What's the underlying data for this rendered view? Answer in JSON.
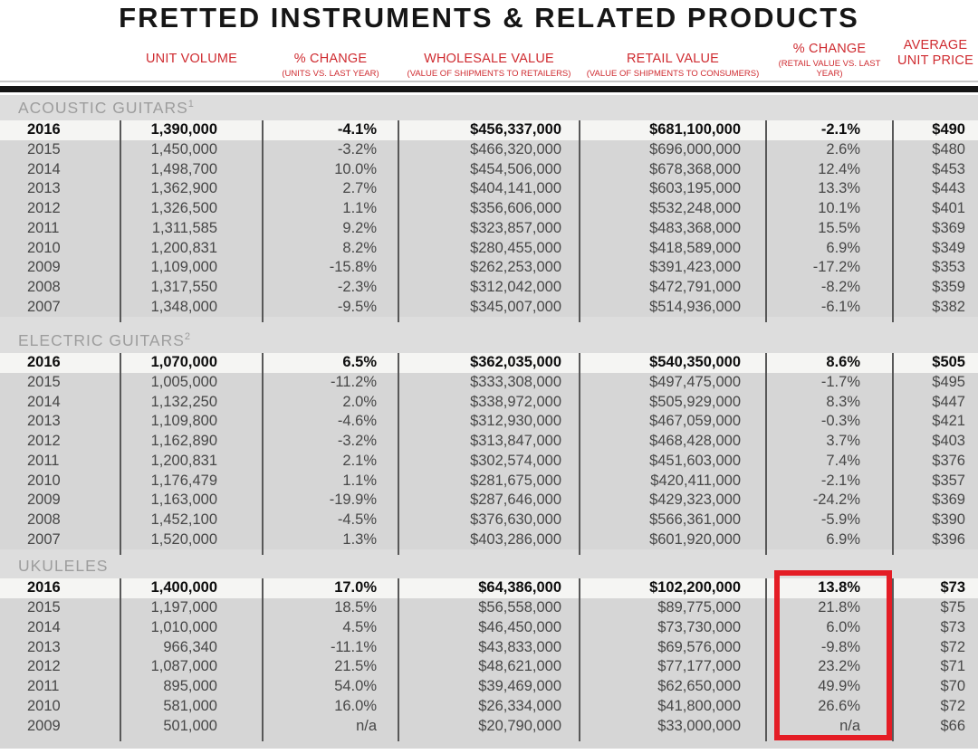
{
  "title": "FRETTED INSTRUMENTS & RELATED PRODUCTS",
  "header": {
    "columns": [
      {
        "label": "UNIT VOLUME",
        "sub": ""
      },
      {
        "label": "% CHANGE",
        "sub": "(UNITS VS. LAST YEAR)"
      },
      {
        "label": "WHOLESALE VALUE",
        "sub": "(VALUE OF SHIPMENTS TO RETAILERS)"
      },
      {
        "label": "RETAIL VALUE",
        "sub": "(VALUE OF SHIPMENTS TO CONSUMERS)"
      },
      {
        "label": "% CHANGE",
        "sub": "(RETAIL VALUE VS. LAST YEAR)"
      },
      {
        "label": "AVERAGE UNIT PRICE",
        "sub": ""
      }
    ]
  },
  "chart_data": {
    "type": "table",
    "title": "FRETTED INSTRUMENTS & RELATED PRODUCTS",
    "columns": [
      "",
      "UNIT VOLUME",
      "% CHANGE (UNITS VS. LAST YEAR)",
      "WHOLESALE VALUE (VALUE OF SHIPMENTS TO RETAILERS)",
      "RETAIL VALUE (VALUE OF SHIPMENTS TO CONSUMERS)",
      "% CHANGE (RETAIL VALUE VS. LAST YEAR)",
      "AVERAGE UNIT PRICE"
    ],
    "sections": [
      {
        "name": "ACOUSTIC GUITARS",
        "footnote": "1",
        "rows": [
          [
            "2016",
            "1,390,000",
            "-4.1%",
            "$456,337,000",
            "$681,100,000",
            "-2.1%",
            "$490"
          ],
          [
            "2015",
            "1,450,000",
            "-3.2%",
            "$466,320,000",
            "$696,000,000",
            "2.6%",
            "$480"
          ],
          [
            "2014",
            "1,498,700",
            "10.0%",
            "$454,506,000",
            "$678,368,000",
            "12.4%",
            "$453"
          ],
          [
            "2013",
            "1,362,900",
            "2.7%",
            "$404,141,000",
            "$603,195,000",
            "13.3%",
            "$443"
          ],
          [
            "2012",
            "1,326,500",
            "1.1%",
            "$356,606,000",
            "$532,248,000",
            "10.1%",
            "$401"
          ],
          [
            "2011",
            "1,311,585",
            "9.2%",
            "$323,857,000",
            "$483,368,000",
            "15.5%",
            "$369"
          ],
          [
            "2010",
            "1,200,831",
            "8.2%",
            "$280,455,000",
            "$418,589,000",
            "6.9%",
            "$349"
          ],
          [
            "2009",
            "1,109,000",
            "-15.8%",
            "$262,253,000",
            "$391,423,000",
            "-17.2%",
            "$353"
          ],
          [
            "2008",
            "1,317,550",
            "-2.3%",
            "$312,042,000",
            "$472,791,000",
            "-8.2%",
            "$359"
          ],
          [
            "2007",
            "1,348,000",
            "-9.5%",
            "$345,007,000",
            "$514,936,000",
            "-6.1%",
            "$382"
          ]
        ]
      },
      {
        "name": "ELECTRIC GUITARS",
        "footnote": "2",
        "rows": [
          [
            "2016",
            "1,070,000",
            "6.5%",
            "$362,035,000",
            "$540,350,000",
            "8.6%",
            "$505"
          ],
          [
            "2015",
            "1,005,000",
            "-11.2%",
            "$333,308,000",
            "$497,475,000",
            "-1.7%",
            "$495"
          ],
          [
            "2014",
            "1,132,250",
            "2.0%",
            "$338,972,000",
            "$505,929,000",
            "8.3%",
            "$447"
          ],
          [
            "2013",
            "1,109,800",
            "-4.6%",
            "$312,930,000",
            "$467,059,000",
            "-0.3%",
            "$421"
          ],
          [
            "2012",
            "1,162,890",
            "-3.2%",
            "$313,847,000",
            "$468,428,000",
            "3.7%",
            "$403"
          ],
          [
            "2011",
            "1,200,831",
            "2.1%",
            "$302,574,000",
            "$451,603,000",
            "7.4%",
            "$376"
          ],
          [
            "2010",
            "1,176,479",
            "1.1%",
            "$281,675,000",
            "$420,411,000",
            "-2.1%",
            "$357"
          ],
          [
            "2009",
            "1,163,000",
            "-19.9%",
            "$287,646,000",
            "$429,323,000",
            "-24.2%",
            "$369"
          ],
          [
            "2008",
            "1,452,100",
            "-4.5%",
            "$376,630,000",
            "$566,361,000",
            "-5.9%",
            "$390"
          ],
          [
            "2007",
            "1,520,000",
            "1.3%",
            "$403,286,000",
            "$601,920,000",
            "6.9%",
            "$396"
          ]
        ]
      },
      {
        "name": "UKULELES",
        "footnote": "",
        "rows": [
          [
            "2016",
            "1,400,000",
            "17.0%",
            "$64,386,000",
            "$102,200,000",
            "13.8%",
            "$73"
          ],
          [
            "2015",
            "1,197,000",
            "18.5%",
            "$56,558,000",
            "$89,775,000",
            "21.8%",
            "$75"
          ],
          [
            "2014",
            "1,010,000",
            "4.5%",
            "$46,450,000",
            "$73,730,000",
            "6.0%",
            "$73"
          ],
          [
            "2013",
            "966,340",
            "-11.1%",
            "$43,833,000",
            "$69,576,000",
            "-9.8%",
            "$72"
          ],
          [
            "2012",
            "1,087,000",
            "21.5%",
            "$48,621,000",
            "$77,177,000",
            "23.2%",
            "$71"
          ],
          [
            "2011",
            "895,000",
            "54.0%",
            "$39,469,000",
            "$62,650,000",
            "49.9%",
            "$70"
          ],
          [
            "2010",
            "581,000",
            "16.0%",
            "$26,334,000",
            "$41,800,000",
            "26.6%",
            "$72"
          ],
          [
            "2009",
            "501,000",
            "n/a",
            "$20,790,000",
            "$33,000,000",
            "n/a",
            "$66"
          ]
        ]
      }
    ]
  },
  "highlight_box": {
    "section": "UKULELES",
    "column": "% CHANGE (RETAIL VALUE VS. LAST YEAR)",
    "color": "#e41d25"
  },
  "colors": {
    "header_red": "#cf2b30",
    "panel_gray": "#d6d6d6",
    "current_row_bg": "#f5f5f3",
    "section_label_gray": "#9d9d9d"
  }
}
